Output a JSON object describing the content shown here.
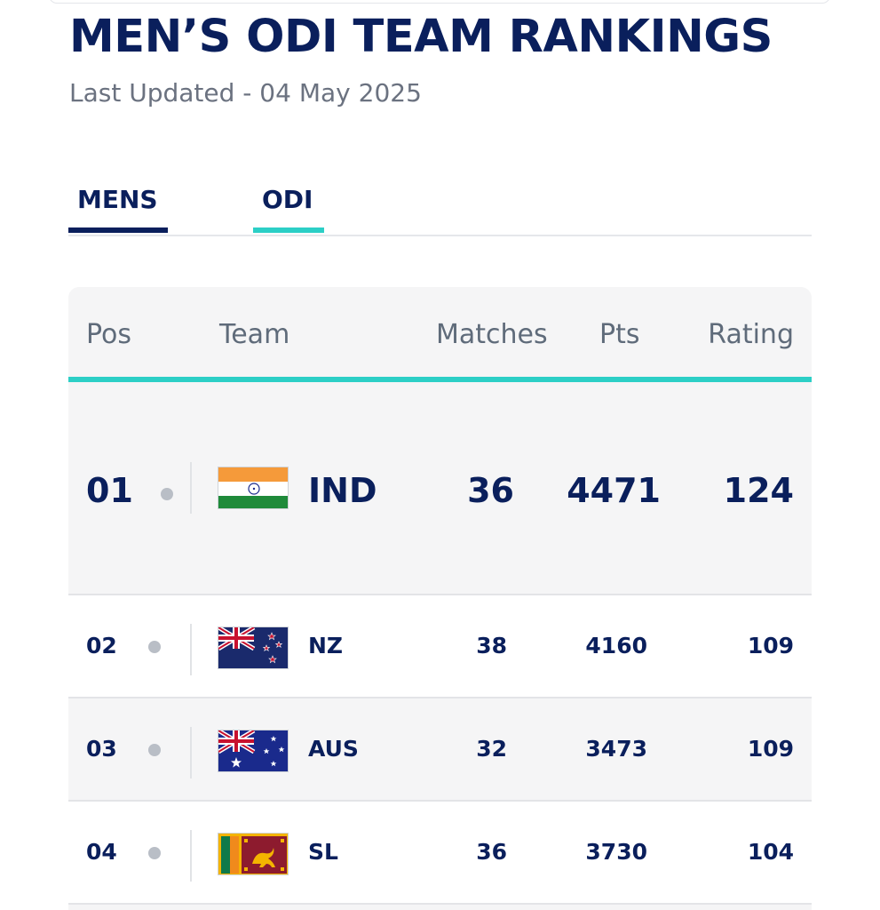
{
  "page": {
    "title": "MEN’S ODI TEAM RANKINGS",
    "last_updated": "Last Updated - 04 May 2025"
  },
  "tabs": [
    {
      "label": "MENS",
      "active": true,
      "accent": "#0a1f5c"
    },
    {
      "label": "ODI",
      "active": true,
      "accent": "#2ccfc6"
    }
  ],
  "table": {
    "headers": {
      "pos": "Pos",
      "team": "Team",
      "matches": "Matches",
      "pts": "Pts",
      "rating": "Rating"
    },
    "rows": [
      {
        "pos": "01",
        "flag": "india-flag-icon",
        "team": "IND",
        "matches": "36",
        "pts": "4471",
        "rating": "124"
      },
      {
        "pos": "02",
        "flag": "new-zealand-flag-icon",
        "team": "NZ",
        "matches": "38",
        "pts": "4160",
        "rating": "109"
      },
      {
        "pos": "03",
        "flag": "australia-flag-icon",
        "team": "AUS",
        "matches": "32",
        "pts": "3473",
        "rating": "109"
      },
      {
        "pos": "04",
        "flag": "sri-lanka-flag-icon",
        "team": "SL",
        "matches": "36",
        "pts": "3730",
        "rating": "104"
      }
    ]
  },
  "colors": {
    "navy": "#0a1f5c",
    "teal_accent": "#2ccfc6",
    "muted_text": "#6b7280",
    "row_bg": "#f5f5f6"
  }
}
